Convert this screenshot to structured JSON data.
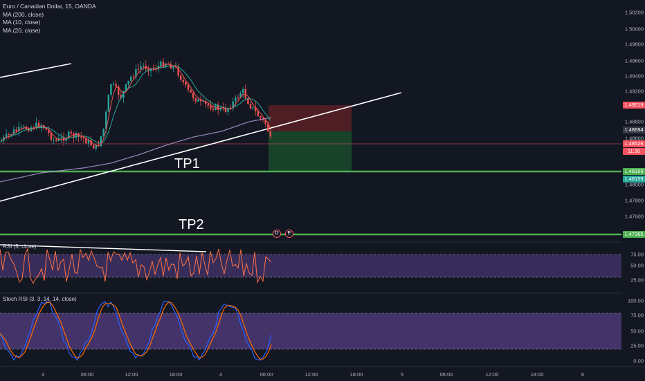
{
  "legend": {
    "symbol_line": "Euro / Canadian Dollar, 15, OANDA",
    "ma200": "MA (200, close)",
    "ma10": "MA (10, close)",
    "ma20": "MA (20, close)"
  },
  "price_axis": {
    "ticks": [
      "1.50200",
      "1.50000",
      "1.49800",
      "1.49600",
      "1.49400",
      "1.49200",
      "1.48800",
      "1.48600",
      "1.48000",
      "1.47800",
      "1.47600"
    ],
    "tags": [
      {
        "label": "1.49019",
        "color": "#f7525f"
      },
      {
        "label": "1.48694",
        "color": "#363a45"
      },
      {
        "label": "1.48526",
        "color": "#f7525f"
      },
      {
        "label": "11:30",
        "color": "#f7525f"
      },
      {
        "label": "1.48169",
        "color": "#4caf50"
      },
      {
        "label": "1.48159",
        "color": "#26a69a"
      },
      {
        "label": "1.47365",
        "color": "#4caf50"
      }
    ]
  },
  "rsi": {
    "label": "RSI (5, close)",
    "ticks": [
      "75.00",
      "50.00",
      "25.00"
    ]
  },
  "stoch": {
    "label": "Stoch RSI (3, 3, 14, 14, close)",
    "ticks": [
      "100.00",
      "75.00",
      "50.00",
      "25.00",
      "0.00"
    ]
  },
  "time_axis": [
    "3",
    "06:00",
    "12:00",
    "18:00",
    "4",
    "06:00",
    "12:00",
    "18:00",
    "5",
    "06:00",
    "12:00",
    "18:00",
    "6"
  ],
  "annotations": {
    "tp1": "TP1",
    "tp2": "TP2",
    "marker1": "D",
    "marker2": "E"
  },
  "colors": {
    "background": "#131722",
    "up": "#26a69a",
    "down": "#ef5350",
    "tp_line": "#4caf50",
    "rsi_band": "#7e57c2"
  }
}
